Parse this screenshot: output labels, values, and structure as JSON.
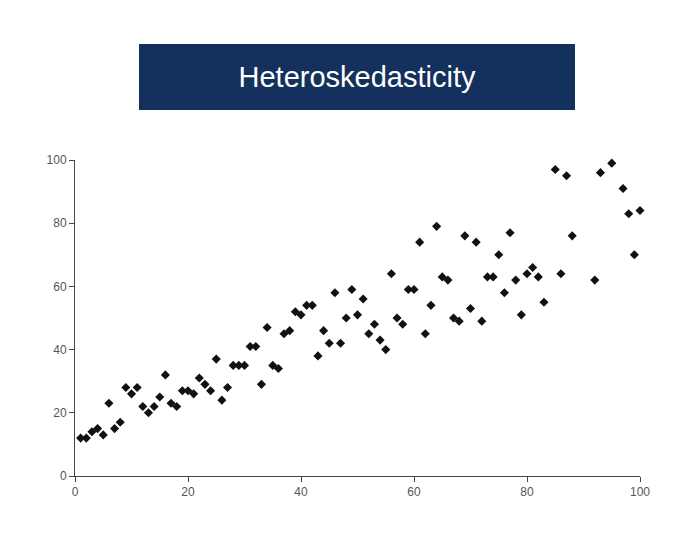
{
  "chart_data": {
    "type": "scatter",
    "title": "Heteroskedasticity",
    "x": [
      1,
      2,
      3,
      4,
      5,
      6,
      7,
      8,
      9,
      10,
      11,
      12,
      13,
      14,
      15,
      16,
      17,
      18,
      19,
      20,
      21,
      22,
      23,
      24,
      25,
      26,
      27,
      28,
      29,
      30,
      31,
      32,
      33,
      34,
      35,
      36,
      37,
      38,
      39,
      40,
      41,
      42,
      43,
      44,
      45,
      46,
      47,
      48,
      49,
      50,
      51,
      52,
      53,
      54,
      55,
      56,
      57,
      58,
      59,
      60,
      61,
      62,
      63,
      64,
      65,
      66,
      67,
      68,
      69,
      70,
      71,
      72,
      73,
      74,
      75,
      76,
      77,
      78,
      79,
      80,
      81,
      82,
      83,
      85,
      86,
      87,
      88,
      92,
      93,
      95,
      97,
      98,
      99,
      100
    ],
    "values": [
      12,
      12,
      14,
      15,
      13,
      23,
      15,
      17,
      28,
      26,
      28,
      22,
      20,
      22,
      25,
      32,
      23,
      22,
      27,
      27,
      26,
      31,
      29,
      27,
      37,
      24,
      28,
      35,
      35,
      35,
      41,
      41,
      29,
      47,
      35,
      34,
      45,
      46,
      52,
      51,
      54,
      54,
      38,
      46,
      42,
      58,
      42,
      50,
      59,
      51,
      56,
      45,
      48,
      43,
      40,
      64,
      50,
      48,
      59,
      59,
      74,
      45,
      54,
      79,
      63,
      62,
      50,
      49,
      76,
      53,
      74,
      49,
      63,
      63,
      70,
      58,
      77,
      62,
      51,
      64,
      66,
      63,
      55,
      97,
      64,
      95,
      76,
      62,
      96,
      99,
      91,
      83,
      70,
      84
    ],
    "color": "#111111",
    "marker": "diamond",
    "xlim": [
      0,
      100
    ],
    "xticks": [
      0,
      20,
      40,
      60,
      80,
      100
    ],
    "ylim": [
      0,
      100
    ],
    "yticks": [
      0,
      20,
      40,
      60,
      80,
      100
    ],
    "grid": false
  }
}
